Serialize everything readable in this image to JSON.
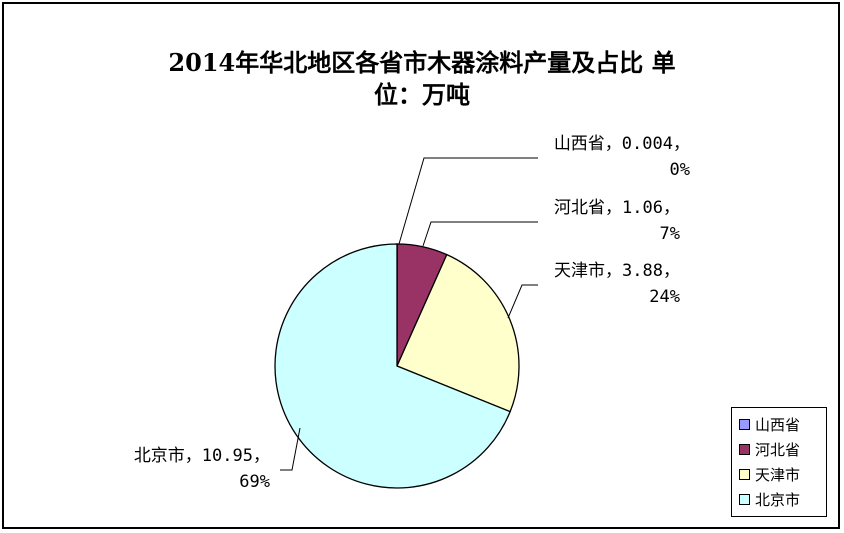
{
  "chart_data": {
    "type": "pie",
    "title_line1": "2014年华北地区各省市木器涂料产量及占比 单",
    "title_line2": "位：万吨",
    "slices": [
      {
        "name": "山西省",
        "value": 0.004,
        "percent": "0%",
        "color": "#9999ff",
        "label_line1": "山西省，0.004，",
        "label_line2": "0%"
      },
      {
        "name": "河北省",
        "value": 1.06,
        "percent": "7%",
        "color": "#993366",
        "label_line1": "河北省，1.06，",
        "label_line2": "7%"
      },
      {
        "name": "天津市",
        "value": 3.88,
        "percent": "24%",
        "color": "#ffffcc",
        "label_line1": "天津市，3.88，",
        "label_line2": "24%"
      },
      {
        "name": "北京市",
        "value": 10.95,
        "percent": "69%",
        "color": "#ccffff",
        "label_line1": "北京市，10.95，",
        "label_line2": "69%"
      }
    ],
    "legend": {
      "position": "bottom-right",
      "entries": [
        "山西省",
        "河北省",
        "天津市",
        "北京市"
      ]
    }
  }
}
